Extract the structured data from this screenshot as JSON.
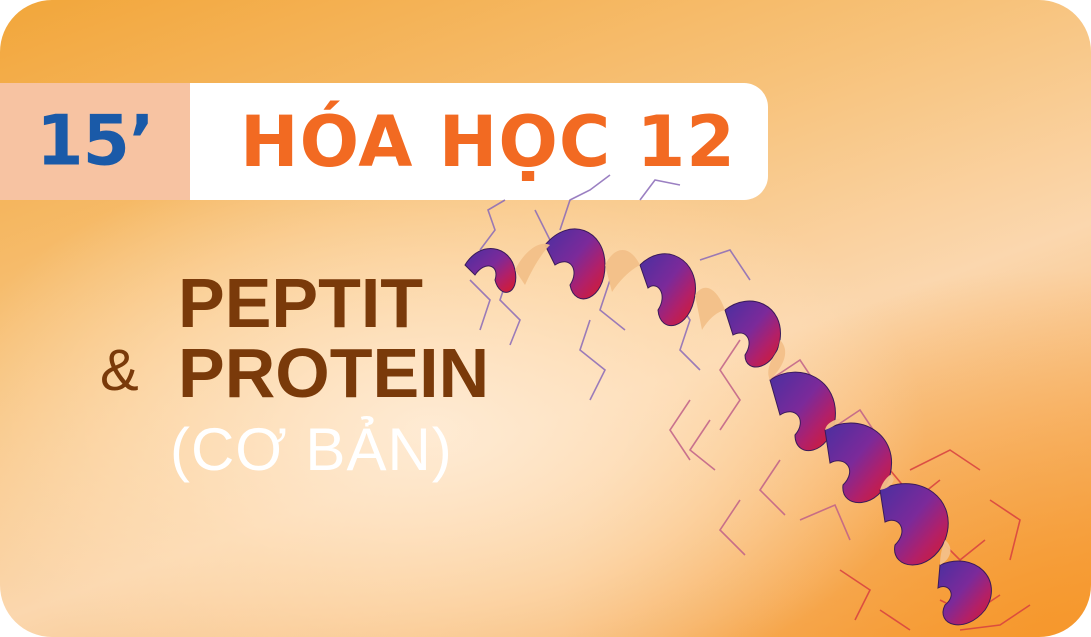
{
  "badge": {
    "duration": "15’"
  },
  "header": {
    "subject": "HÓA HỌC 12"
  },
  "title": {
    "line1": "PEPTIT",
    "ampersand": "&",
    "line2": "PROTEIN",
    "level": "(CƠ BẢN)"
  },
  "illustration": {
    "icon": "protein-helix-icon"
  },
  "colors": {
    "badge_bg": "#f7c3a2",
    "badge_text": "#1a5aa8",
    "subject_text": "#f26a22",
    "title_text": "#7a3a0a",
    "level_text": "#ffffff"
  }
}
